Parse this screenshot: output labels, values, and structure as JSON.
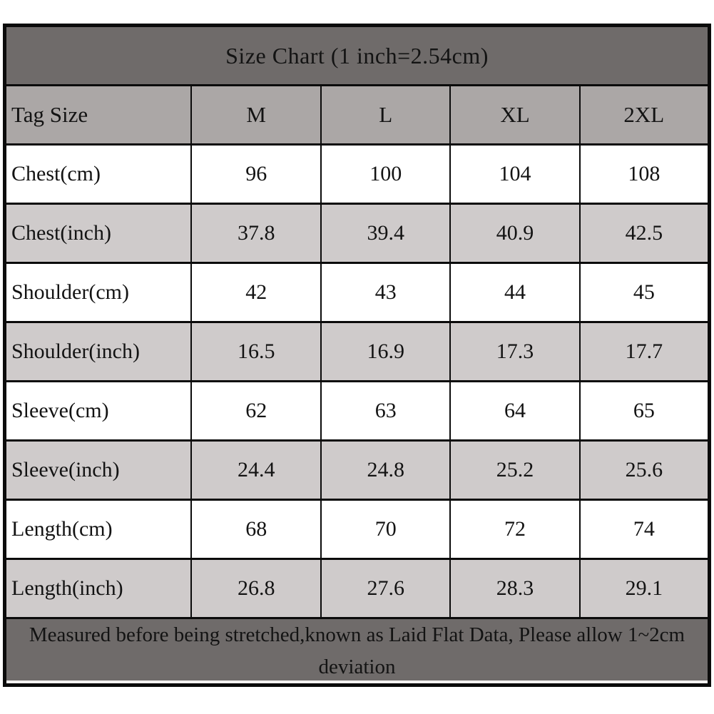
{
  "colors": {
    "page_background": "#ffffff",
    "title_bar_background": "#6f6b6a",
    "title_text": "#ffffff",
    "header_row_background": "#aba7a6",
    "row_alt_background": "#cfcbcb",
    "row_background": "#ffffff",
    "cell_text": "#131313",
    "grid_border": "#0b0b0b",
    "footer_background": "#6f6b6a",
    "footer_text": "#ffffff"
  },
  "chart_data": {
    "type": "table",
    "title": "Size Chart (1 inch=2.54cm)",
    "columns": [
      "Tag Size",
      "M",
      "L",
      "XL",
      "2XL"
    ],
    "rows": [
      {
        "label": "Chest(cm)",
        "values": [
          "96",
          "100",
          "104",
          "108"
        ]
      },
      {
        "label": "Chest(inch)",
        "values": [
          "37.8",
          "39.4",
          "40.9",
          "42.5"
        ]
      },
      {
        "label": "Shoulder(cm)",
        "values": [
          "42",
          "43",
          "44",
          "45"
        ]
      },
      {
        "label": "Shoulder(inch)",
        "values": [
          "16.5",
          "16.9",
          "17.3",
          "17.7"
        ]
      },
      {
        "label": "Sleeve(cm)",
        "values": [
          "62",
          "63",
          "64",
          "65"
        ]
      },
      {
        "label": "Sleeve(inch)",
        "values": [
          "24.4",
          "24.8",
          "25.2",
          "25.6"
        ]
      },
      {
        "label": "Length(cm)",
        "values": [
          "68",
          "70",
          "72",
          "74"
        ]
      },
      {
        "label": "Length(inch)",
        "values": [
          "26.8",
          "27.6",
          "28.3",
          "29.1"
        ]
      }
    ],
    "footer_note": "Measured before being stretched,known as Laid Flat Data, Please allow 1~2cm deviation"
  }
}
